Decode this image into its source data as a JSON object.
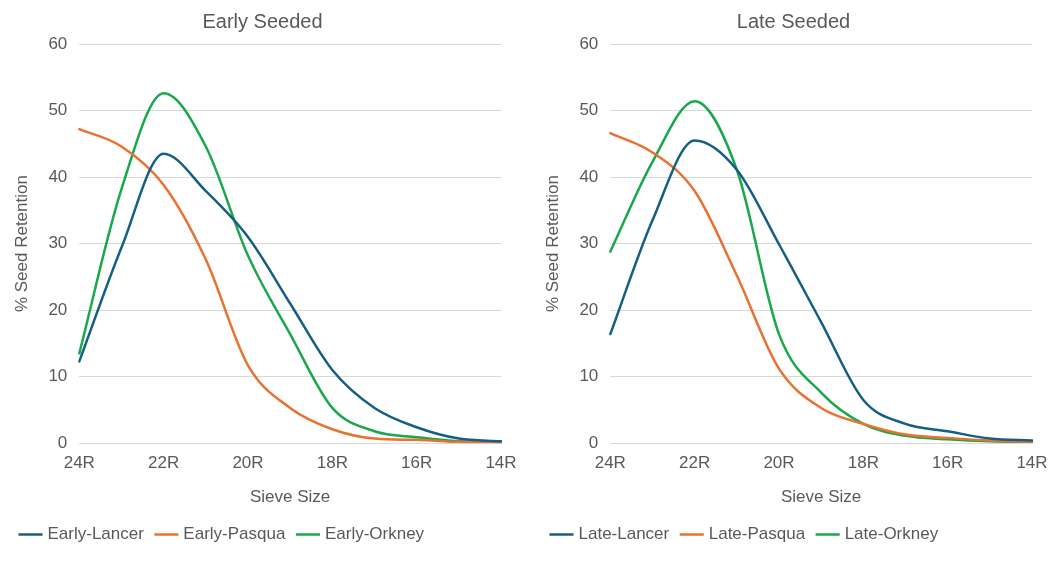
{
  "chart_data": [
    {
      "type": "line",
      "title": "Early Seeded",
      "xlabel": "Sieve Size",
      "ylabel": "% Seed Retention",
      "categories": [
        "24R",
        null,
        "22R",
        null,
        "20R",
        null,
        "18R",
        null,
        "16R",
        null,
        "14R"
      ],
      "ylim": [
        0,
        60
      ],
      "yticks": [
        0,
        10,
        20,
        30,
        40,
        50,
        60
      ],
      "grid": "y",
      "legend": "bottom",
      "marker": "none",
      "line_style": "solid",
      "series": [
        {
          "name": "Early-Lancer",
          "color": "#156082",
          "values": [
            12.3,
            29.4,
            43.5,
            37.9,
            31,
            21,
            11,
            5.3,
            2.4,
            0.7,
            0.3
          ]
        },
        {
          "name": "Early-Pasqua",
          "color": "#e97132",
          "values": [
            47.2,
            44.6,
            38.8,
            27.6,
            11.7,
            5.3,
            2.1,
            0.7,
            0.5,
            0.2,
            0.1
          ]
        },
        {
          "name": "Early-Orkney",
          "color": "#19a84b",
          "values": [
            13.5,
            38.2,
            52.6,
            44.6,
            28.2,
            16.4,
            5.3,
            1.8,
            0.9,
            0.3,
            0.2
          ]
        }
      ]
    },
    {
      "type": "line",
      "title": "Late Seeded",
      "xlabel": "Sieve Size",
      "ylabel": "% Seed Retention",
      "categories": [
        "24R",
        null,
        "22R",
        null,
        "20R",
        null,
        "18R",
        null,
        "16R",
        null,
        "14R"
      ],
      "ylim": [
        0,
        60
      ],
      "yticks": [
        0,
        10,
        20,
        30,
        40,
        50,
        60
      ],
      "grid": "y",
      "legend": "bottom",
      "marker": "none",
      "line_style": "solid",
      "series": [
        {
          "name": "Late-Lancer",
          "color": "#156082",
          "values": [
            16.4,
            33.5,
            45.5,
            41.1,
            29.9,
            18.2,
            6.5,
            2.9,
            1.8,
            0.7,
            0.4
          ]
        },
        {
          "name": "Late-Pasqua",
          "color": "#e97132",
          "values": [
            46.6,
            43.7,
            37.9,
            25.2,
            11.2,
            5.3,
            2.9,
            1.3,
            0.8,
            0.4,
            0.2
          ]
        },
        {
          "name": "Late-Orkney",
          "color": "#19a84b",
          "values": [
            28.8,
            42.3,
            51.4,
            41.1,
            16.4,
            7.6,
            2.9,
            1.1,
            0.6,
            0.3,
            0.2
          ]
        }
      ]
    }
  ]
}
